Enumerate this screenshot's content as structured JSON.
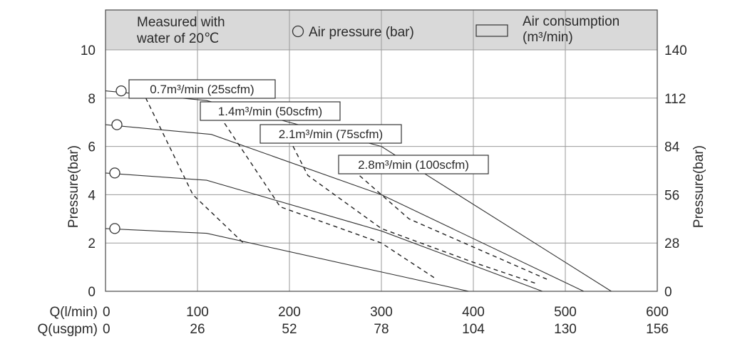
{
  "chart_data": {
    "type": "line",
    "header": {
      "note_line1": "Measured with",
      "note_line2": "water of 20℃",
      "legend_pressure": "Air pressure (bar)",
      "legend_consumption_line1": "Air consumption",
      "legend_consumption_line2": "(m³/min)"
    },
    "ylabel_left": "Pressure(bar)",
    "ylabel_right": "Pressure(bar)",
    "ylim_left": [
      0,
      10
    ],
    "ylim_right": [
      0,
      140
    ],
    "yticks_left": [
      0,
      2,
      4,
      6,
      8,
      10
    ],
    "yticks_right": [
      0,
      28,
      56,
      84,
      112,
      140
    ],
    "xlim": [
      0,
      600
    ],
    "x_axis_lpm_label": "Q(l/min)",
    "x_axis_usgpm_label": "Q(usgpm)",
    "xticks_lpm": [
      0,
      100,
      200,
      300,
      400,
      500,
      600
    ],
    "xticks_usgpm": [
      0,
      26,
      52,
      78,
      104,
      130,
      156
    ],
    "grid": true,
    "legend": "top",
    "pressure_series": [
      {
        "air_pressure": 8.3,
        "points": [
          [
            0,
            8.3
          ],
          [
            110,
            7.9
          ],
          [
            300,
            6.0
          ],
          [
            550,
            0
          ]
        ]
      },
      {
        "air_pressure": 6.9,
        "points": [
          [
            0,
            6.9
          ],
          [
            115,
            6.5
          ],
          [
            300,
            4.0
          ],
          [
            520,
            0
          ]
        ]
      },
      {
        "air_pressure": 4.9,
        "points": [
          [
            0,
            4.9
          ],
          [
            110,
            4.6
          ],
          [
            300,
            2.5
          ],
          [
            475,
            0
          ]
        ]
      },
      {
        "air_pressure": 2.6,
        "points": [
          [
            0,
            2.6
          ],
          [
            110,
            2.4
          ],
          [
            300,
            0.8
          ],
          [
            395,
            0
          ]
        ]
      }
    ],
    "consumption_series": [
      {
        "name": "0.7m³/min (25scfm)",
        "points": [
          [
            40,
            8.3
          ],
          [
            95,
            4.0
          ],
          [
            150,
            2.0
          ]
        ]
      },
      {
        "name": "1.4m³/min (50scfm)",
        "points": [
          [
            120,
            7.5
          ],
          [
            190,
            3.5
          ],
          [
            300,
            2.0
          ],
          [
            360,
            0.5
          ]
        ]
      },
      {
        "name": "2.1m³/min (75scfm)",
        "points": [
          [
            200,
            6.3
          ],
          [
            220,
            4.8
          ],
          [
            300,
            2.6
          ],
          [
            400,
            1.2
          ],
          [
            470,
            0.3
          ]
        ]
      },
      {
        "name": "2.8m³/min (100scfm)",
        "points": [
          [
            270,
            5.0
          ],
          [
            330,
            3.0
          ],
          [
            480,
            0.5
          ]
        ]
      }
    ]
  }
}
